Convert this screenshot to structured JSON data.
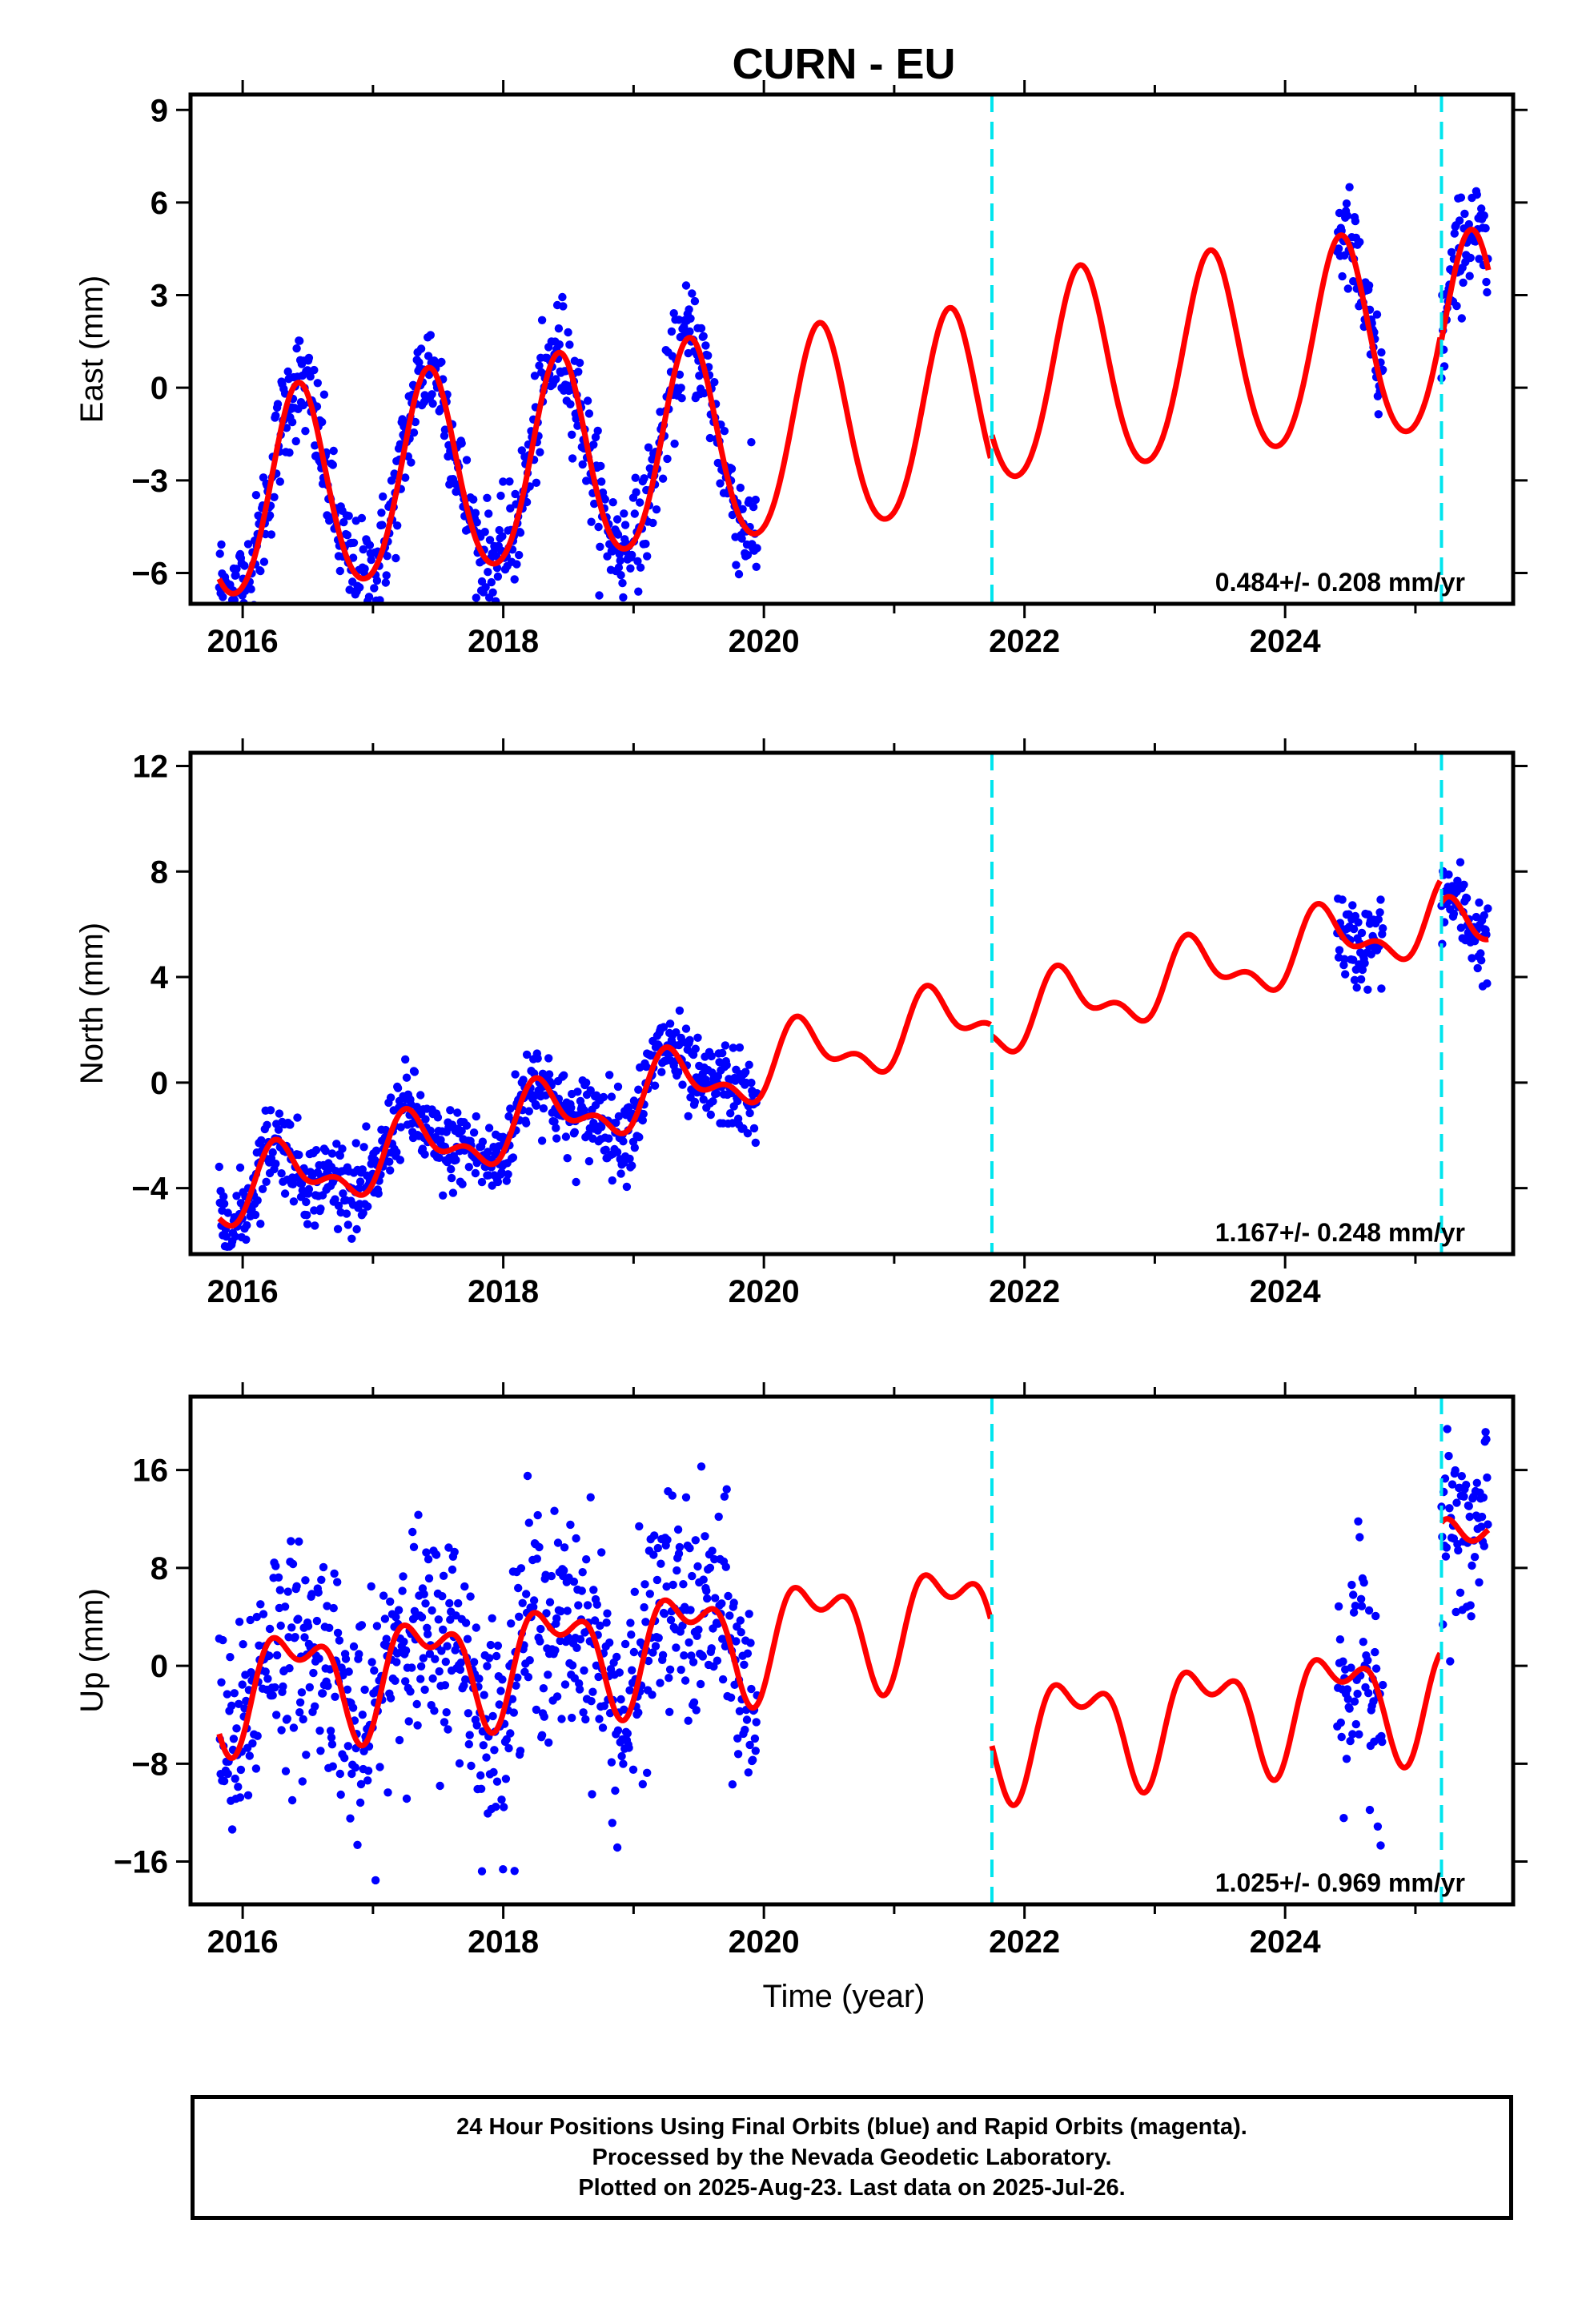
{
  "title": "CURN - EU",
  "x_axis_label": "Time (year)",
  "footer": {
    "line1": "24 Hour Positions Using Final Orbits (blue) and Rapid Orbits (magenta).",
    "line2": "Processed by the Nevada Geodetic Laboratory.",
    "line3": "Plotted on 2025-Aug-23. Last data on 2025-Jul-26."
  },
  "colors": {
    "data_points": "#0000ff",
    "model_line": "#ff0000",
    "breaks": "#00e5ee"
  },
  "chart_data": [
    {
      "type": "scatter",
      "ylabel": "East (mm)",
      "xlim": [
        2015.6,
        2025.75
      ],
      "ylim": [
        -7,
        9.5
      ],
      "xticks": [
        2016,
        2018,
        2020,
        2022,
        2024
      ],
      "yticks": [
        -6,
        -3,
        0,
        3,
        6,
        9
      ],
      "ytick_labels": [
        "−6",
        "−3",
        "0",
        "3",
        "6",
        "9"
      ],
      "rate_label": "0.484+/- 0.208 mm/yr",
      "break_epochs": [
        2021.75,
        2025.2
      ],
      "data_segments": [
        [
          2015.82,
          2019.95
        ],
        [
          2024.4,
          2024.75
        ],
        [
          2025.2,
          2025.56
        ]
      ],
      "model": {
        "intercept": -1.7,
        "rate": 0.484,
        "ref_year": 2020.0,
        "annual_amp": 3.3,
        "annual_phase": 0.18,
        "semi_amp": 0.3,
        "semi_phase": 0.3,
        "offsets": [
          0.0,
          0.9,
          0.6
        ],
        "noise_sd": 0.9
      },
      "series": [
        {
          "name": "",
          "kind": "points"
        },
        {
          "name": "",
          "kind": "model"
        }
      ]
    },
    {
      "type": "scatter",
      "ylabel": "North (mm)",
      "xlim": [
        2015.6,
        2025.75
      ],
      "ylim": [
        -6.5,
        12.5
      ],
      "xticks": [
        2016,
        2018,
        2020,
        2022,
        2024
      ],
      "yticks": [
        -4,
        0,
        4,
        8,
        12
      ],
      "ytick_labels": [
        "−4",
        "0",
        "4",
        "8",
        "12"
      ],
      "rate_label": "1.167+/- 0.248 mm/yr",
      "break_epochs": [
        2021.75,
        2025.2
      ],
      "data_segments": [
        [
          2015.82,
          2019.95
        ],
        [
          2024.4,
          2024.75
        ],
        [
          2025.2,
          2025.56
        ]
      ],
      "model": {
        "intercept": 0.6,
        "rate": 1.167,
        "ref_year": 2020.0,
        "annual_amp": 1.1,
        "annual_phase": 0.05,
        "semi_amp": 0.6,
        "semi_phase": 0.1,
        "offsets": [
          0.0,
          -0.4,
          -1.3
        ],
        "noise_sd": 0.8
      },
      "series": [
        {
          "name": "",
          "kind": "points"
        },
        {
          "name": "",
          "kind": "model"
        }
      ]
    },
    {
      "type": "scatter",
      "ylabel": "Up (mm)",
      "xlim": [
        2015.6,
        2025.75
      ],
      "ylim": [
        -19.5,
        22
      ],
      "xticks": [
        2016,
        2018,
        2020,
        2022,
        2024
      ],
      "yticks": [
        -16,
        -8,
        0,
        8,
        16
      ],
      "ytick_labels": [
        "−16",
        "−8",
        "0",
        "8",
        "16"
      ],
      "rate_label": "1.025+/- 0.969 mm/yr",
      "break_epochs": [
        2021.75,
        2025.2
      ],
      "data_segments": [
        [
          2015.82,
          2019.95
        ],
        [
          2024.4,
          2024.75
        ],
        [
          2025.2,
          2025.56
        ]
      ],
      "model": {
        "intercept": 2.6,
        "rate": 1.025,
        "ref_year": 2020.0,
        "annual_amp": 3.8,
        "annual_phase": 0.15,
        "semi_amp": 2.2,
        "semi_phase": 0.05,
        "offsets": [
          0.0,
          -10.0,
          0.5
        ],
        "noise_sd": 4.5
      },
      "series": [
        {
          "name": "",
          "kind": "points"
        },
        {
          "name": "",
          "kind": "model"
        }
      ]
    }
  ]
}
